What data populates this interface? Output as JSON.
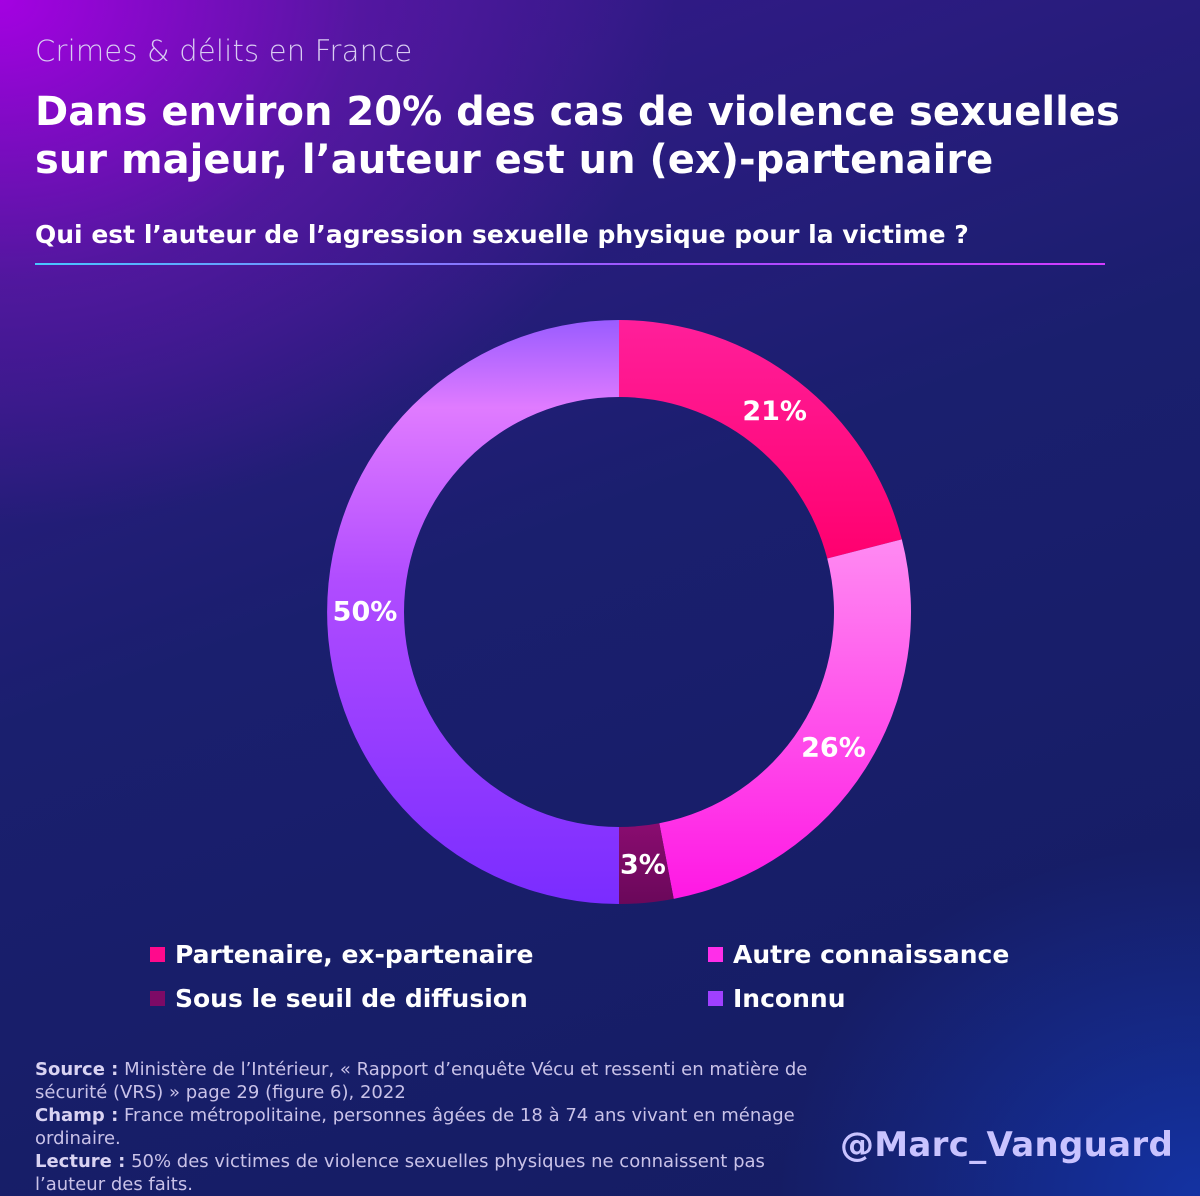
{
  "header": {
    "kicker": "Crimes & délits en France",
    "title": "Dans environ 20% des cas de violence sexuelles sur majeur, l’auteur est un (ex)-partenaire",
    "subtitle": "Qui est l’auteur de l’agression sexuelle physique pour la victime ?"
  },
  "chart_data": {
    "type": "pie",
    "categories": [
      "Partenaire, ex-partenaire",
      "Autre connaissance",
      "Sous le seuil de diffusion",
      "Inconnu"
    ],
    "values": [
      21,
      26,
      3,
      50
    ],
    "labels": [
      "21%",
      "26%",
      "3%",
      "50%"
    ],
    "colors": [
      "#ff0a8c",
      "#ff2ee9",
      "#7d0a66",
      "#a040ff"
    ],
    "title": "Qui est l’auteur de l’agression sexuelle physique pour la victime ?",
    "legend": "bottom"
  },
  "legend": {
    "items": [
      {
        "label": "Partenaire, ex-partenaire",
        "color": "#ff0a8c"
      },
      {
        "label": "Autre connaissance",
        "color": "#ff2ee9"
      },
      {
        "label": "Sous le seuil de diffusion",
        "color": "#7d0a66"
      },
      {
        "label": "Inconnu",
        "color": "#a040ff"
      }
    ]
  },
  "notes": {
    "source_label": "Source :",
    "source_text": "Ministère de l’Intérieur, « Rapport d’enquête Vécu et ressenti en matière de sécurité (VRS) » page 29 (figure 6), 2022",
    "champ_label": "Champ :",
    "champ_text": "France métropolitaine, personnes âgées de 18 à 74 ans vivant en ménage ordinaire.",
    "lecture_label": "Lecture :",
    "lecture_text": "50% des victimes de violence sexuelles physiques ne connaissent pas l’auteur des faits."
  },
  "handle": "@Marc_Vanguard"
}
